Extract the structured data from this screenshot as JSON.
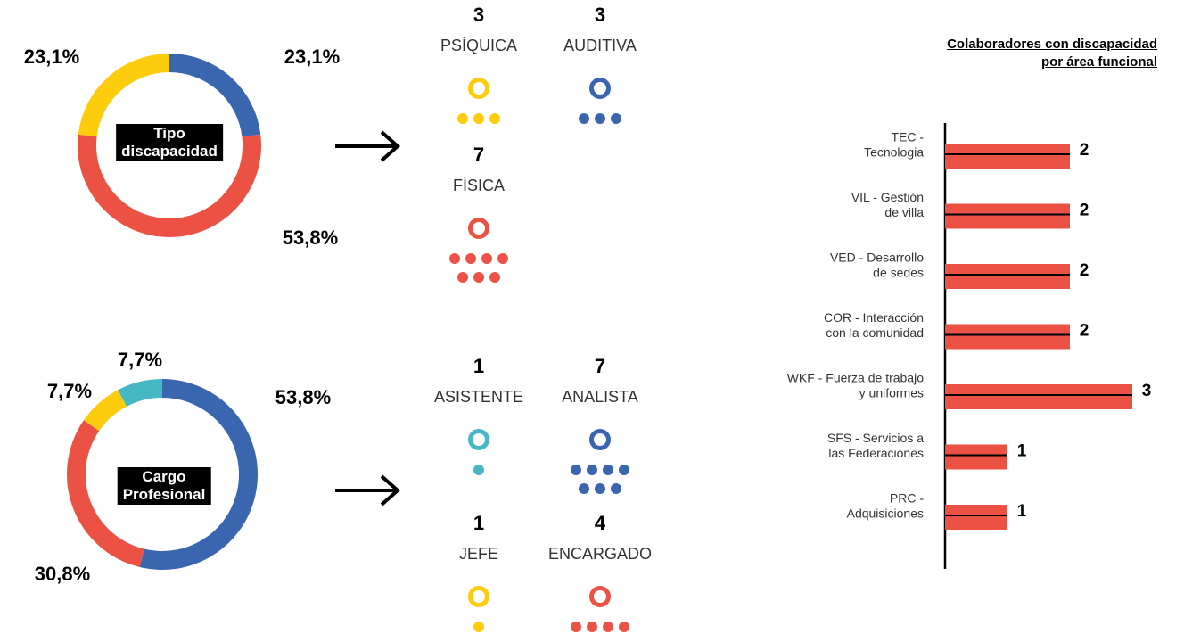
{
  "chart_data": [
    {
      "type": "pie",
      "title": "Tipo discapacidad",
      "categories": [
        "AUDITIVA",
        "FÍSICA",
        "PSÍQUICA"
      ],
      "values": [
        23.1,
        53.8,
        23.1
      ],
      "value_labels": [
        "23,1%",
        "53,8%",
        "23,1%"
      ],
      "counts": [
        3,
        7,
        3
      ],
      "colors": [
        "#3a66b0",
        "#ec5244",
        "#fdcc0d"
      ]
    },
    {
      "type": "pie",
      "title": "Cargo Profesional",
      "categories": [
        "ANALISTA",
        "ENCARGADO",
        "JEFE",
        "ASISTENTE"
      ],
      "values": [
        53.8,
        30.8,
        7.7,
        7.7
      ],
      "value_labels": [
        "53,8%",
        "30,8%",
        "7,7%",
        "7,7%"
      ],
      "counts": [
        7,
        4,
        1,
        1
      ],
      "colors": [
        "#3a66b0",
        "#ec5244",
        "#fdcc0d",
        "#45b8c3"
      ]
    },
    {
      "type": "barh",
      "title": [
        "Colaboradores con discapacidad",
        "por área funcional"
      ],
      "categories": [
        [
          "TEC -",
          "Tecnologia"
        ],
        [
          "VIL - Gestión",
          "de villa"
        ],
        [
          "VED - Desarrollo",
          "de sedes"
        ],
        [
          "COR - Interacción",
          "con la comunidad"
        ],
        [
          "WKF - Fuerza de trabajo",
          "y uniformes"
        ],
        [
          "SFS - Servicios a",
          "las Federaciones"
        ],
        [
          "PRC -",
          "Adquisiciones"
        ]
      ],
      "values": [
        2,
        2,
        2,
        2,
        3,
        1,
        1
      ],
      "color": "#ec5244"
    }
  ]
}
